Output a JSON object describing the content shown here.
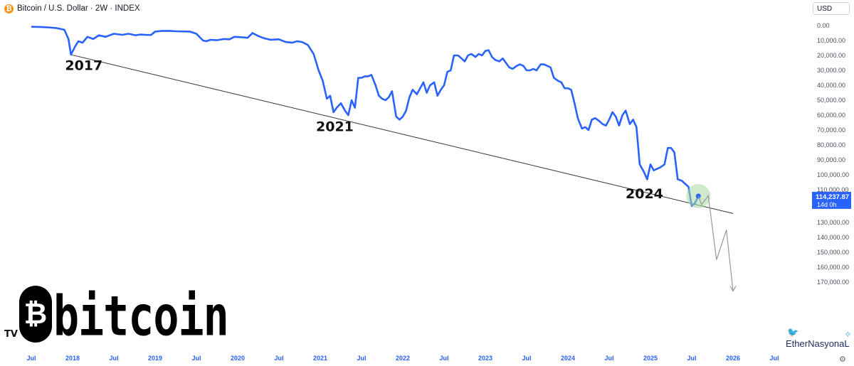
{
  "header": {
    "symbol_glyph": "₿",
    "title": "Bitcoin / U.S. Dollar · 2W · INDEX",
    "currency": "USD"
  },
  "chart_data": {
    "type": "line",
    "y_inverted": true,
    "ylim": [
      -3000,
      178000
    ],
    "y_ticks": [
      "0.00",
      "10,000.00",
      "20,000.00",
      "30,000.00",
      "40,000.00",
      "50,000.00",
      "60,000.00",
      "70,000.00",
      "80,000.00",
      "90,000.00",
      "100,000.00",
      "110,000.00",
      "130,000.00",
      "140,000.00",
      "150,000.00",
      "160,000.00",
      "170,000.00"
    ],
    "y_tick_values": [
      0,
      10000,
      20000,
      30000,
      40000,
      50000,
      60000,
      70000,
      80000,
      90000,
      100000,
      110000,
      130000,
      140000,
      150000,
      160000,
      170000
    ],
    "x_ticks": [
      "Jul",
      "2018",
      "Jul",
      "2019",
      "Jul",
      "2020",
      "Jul",
      "2021",
      "Jul",
      "2022",
      "Jul",
      "2023",
      "Jul",
      "2024",
      "Jul",
      "2025",
      "Jul",
      "2026",
      "Jul"
    ],
    "x_tick_values": [
      2017.5,
      2018,
      2018.5,
      2019,
      2019.5,
      2020,
      2020.5,
      2021,
      2021.5,
      2022,
      2022.5,
      2023,
      2023.5,
      2024,
      2024.5,
      2025,
      2025.5,
      2026,
      2026.5
    ],
    "xlim": [
      2017.5,
      2026.5
    ],
    "series": [
      {
        "color": "#2962ff",
        "points": [
          [
            2017.5,
            800
          ],
          [
            2017.6,
            900
          ],
          [
            2017.7,
            1200
          ],
          [
            2017.8,
            1600
          ],
          [
            2017.9,
            2800
          ],
          [
            2017.95,
            9000
          ],
          [
            2017.98,
            19500
          ],
          [
            2018.03,
            14000
          ],
          [
            2018.07,
            10500
          ],
          [
            2018.12,
            11500
          ],
          [
            2018.18,
            7500
          ],
          [
            2018.25,
            9000
          ],
          [
            2018.32,
            6500
          ],
          [
            2018.4,
            7500
          ],
          [
            2018.5,
            5500
          ],
          [
            2018.6,
            6200
          ],
          [
            2018.68,
            5500
          ],
          [
            2018.76,
            6500
          ],
          [
            2018.82,
            6000
          ],
          [
            2018.88,
            6200
          ],
          [
            2018.95,
            6300
          ],
          [
            2019.0,
            4000
          ],
          [
            2019.08,
            3600
          ],
          [
            2019.17,
            3500
          ],
          [
            2019.25,
            3800
          ],
          [
            2019.33,
            3900
          ],
          [
            2019.42,
            4000
          ],
          [
            2019.5,
            5500
          ],
          [
            2019.58,
            10000
          ],
          [
            2019.62,
            10500
          ],
          [
            2019.67,
            9500
          ],
          [
            2019.75,
            9800
          ],
          [
            2019.83,
            9000
          ],
          [
            2019.9,
            9200
          ],
          [
            2019.96,
            7500
          ],
          [
            2020.05,
            7800
          ],
          [
            2020.12,
            8200
          ],
          [
            2020.18,
            5000
          ],
          [
            2020.25,
            7000
          ],
          [
            2020.32,
            8500
          ],
          [
            2020.4,
            9500
          ],
          [
            2020.5,
            9200
          ],
          [
            2020.58,
            11000
          ],
          [
            2020.66,
            11500
          ],
          [
            2020.72,
            10500
          ],
          [
            2020.78,
            11000
          ],
          [
            2020.85,
            13000
          ],
          [
            2020.92,
            19000
          ],
          [
            2020.98,
            30000
          ],
          [
            2021.03,
            37000
          ],
          [
            2021.08,
            49000
          ],
          [
            2021.12,
            47000
          ],
          [
            2021.16,
            58000
          ],
          [
            2021.2,
            55000
          ],
          [
            2021.25,
            52000
          ],
          [
            2021.3,
            57000
          ],
          [
            2021.34,
            60000
          ],
          [
            2021.38,
            50000
          ],
          [
            2021.42,
            55000
          ],
          [
            2021.46,
            35000
          ],
          [
            2021.5,
            35000
          ],
          [
            2021.54,
            34000
          ],
          [
            2021.58,
            34000
          ],
          [
            2021.62,
            33000
          ],
          [
            2021.67,
            40000
          ],
          [
            2021.71,
            47000
          ],
          [
            2021.75,
            49000
          ],
          [
            2021.79,
            50000
          ],
          [
            2021.83,
            48000
          ],
          [
            2021.87,
            44000
          ],
          [
            2021.92,
            61000
          ],
          [
            2021.96,
            63000
          ],
          [
            2022.0,
            61000
          ],
          [
            2022.04,
            57000
          ],
          [
            2022.08,
            48000
          ],
          [
            2022.12,
            43000
          ],
          [
            2022.17,
            46000
          ],
          [
            2022.21,
            42000
          ],
          [
            2022.25,
            38000
          ],
          [
            2022.29,
            45000
          ],
          [
            2022.33,
            40000
          ],
          [
            2022.38,
            38000
          ],
          [
            2022.42,
            47000
          ],
          [
            2022.46,
            43000
          ],
          [
            2022.5,
            40000
          ],
          [
            2022.54,
            31000
          ],
          [
            2022.58,
            30000
          ],
          [
            2022.62,
            20000
          ],
          [
            2022.67,
            20000
          ],
          [
            2022.71,
            22000
          ],
          [
            2022.75,
            24000
          ],
          [
            2022.79,
            20000
          ],
          [
            2022.83,
            19000
          ],
          [
            2022.88,
            21000
          ],
          [
            2022.92,
            19000
          ],
          [
            2022.96,
            20000
          ],
          [
            2023.0,
            17000
          ],
          [
            2023.04,
            16500
          ],
          [
            2023.08,
            21000
          ],
          [
            2023.12,
            23000
          ],
          [
            2023.17,
            24000
          ],
          [
            2023.21,
            22000
          ],
          [
            2023.25,
            25000
          ],
          [
            2023.29,
            28000
          ],
          [
            2023.33,
            29000
          ],
          [
            2023.38,
            27000
          ],
          [
            2023.42,
            26000
          ],
          [
            2023.46,
            27000
          ],
          [
            2023.5,
            30000
          ],
          [
            2023.54,
            30000
          ],
          [
            2023.58,
            29000
          ],
          [
            2023.62,
            30000
          ],
          [
            2023.67,
            26000
          ],
          [
            2023.71,
            26000
          ],
          [
            2023.75,
            27000
          ],
          [
            2023.79,
            28000
          ],
          [
            2023.83,
            35000
          ],
          [
            2023.88,
            37000
          ],
          [
            2023.92,
            38000
          ],
          [
            2023.96,
            42000
          ],
          [
            2024.0,
            42000
          ],
          [
            2024.04,
            43000
          ],
          [
            2024.08,
            52000
          ],
          [
            2024.12,
            62000
          ],
          [
            2024.17,
            69000
          ],
          [
            2024.21,
            68000
          ],
          [
            2024.25,
            70000
          ],
          [
            2024.29,
            63000
          ],
          [
            2024.33,
            62000
          ],
          [
            2024.38,
            64000
          ],
          [
            2024.42,
            66000
          ],
          [
            2024.46,
            67000
          ],
          [
            2024.5,
            63000
          ],
          [
            2024.54,
            58000
          ],
          [
            2024.58,
            61000
          ],
          [
            2024.62,
            67000
          ],
          [
            2024.66,
            60000
          ],
          [
            2024.7,
            57000
          ],
          [
            2024.75,
            66000
          ],
          [
            2024.79,
            63000
          ],
          [
            2024.83,
            68000
          ],
          [
            2024.87,
            93000
          ],
          [
            2024.92,
            98000
          ],
          [
            2024.96,
            103000
          ],
          [
            2025.0,
            93000
          ],
          [
            2025.04,
            97000
          ],
          [
            2025.08,
            96000
          ],
          [
            2025.12,
            95000
          ],
          [
            2025.17,
            93000
          ],
          [
            2025.21,
            82000
          ],
          [
            2025.25,
            82000
          ],
          [
            2025.29,
            85000
          ],
          [
            2025.33,
            103000
          ],
          [
            2025.38,
            104000
          ],
          [
            2025.42,
            106000
          ],
          [
            2025.46,
            108000
          ],
          [
            2025.5,
            119000
          ],
          [
            2025.54,
            117000
          ],
          [
            2025.58,
            114237
          ]
        ]
      }
    ],
    "trendline": {
      "color": "#333333",
      "from": [
        2017.98,
        19500
      ],
      "to": [
        2026.0,
        124000
      ]
    },
    "projection": {
      "color": "#999999",
      "points": [
        [
          2025.58,
          114237
        ],
        [
          2025.62,
          118000
        ],
        [
          2025.7,
          114000
        ],
        [
          2025.8,
          155000
        ],
        [
          2025.92,
          135000
        ],
        [
          2026.0,
          176000
        ]
      ]
    },
    "annotations": [
      {
        "text": "2017",
        "x": 2017.96,
        "y": 24000
      },
      {
        "text": "2021",
        "x": 2021.0,
        "y": 65000
      },
      {
        "text": "2024",
        "x": 2024.75,
        "y": 110000
      }
    ],
    "last_price": {
      "value": "114,237.87",
      "countdown": "14d 0h",
      "color": "#2962ff"
    }
  },
  "logo": {
    "tv_mark": "TV",
    "glyph": "₿",
    "word": "bitcoin"
  },
  "brand": {
    "name": "EtherNasyonaL",
    "bird_icon": "bird-icon"
  }
}
